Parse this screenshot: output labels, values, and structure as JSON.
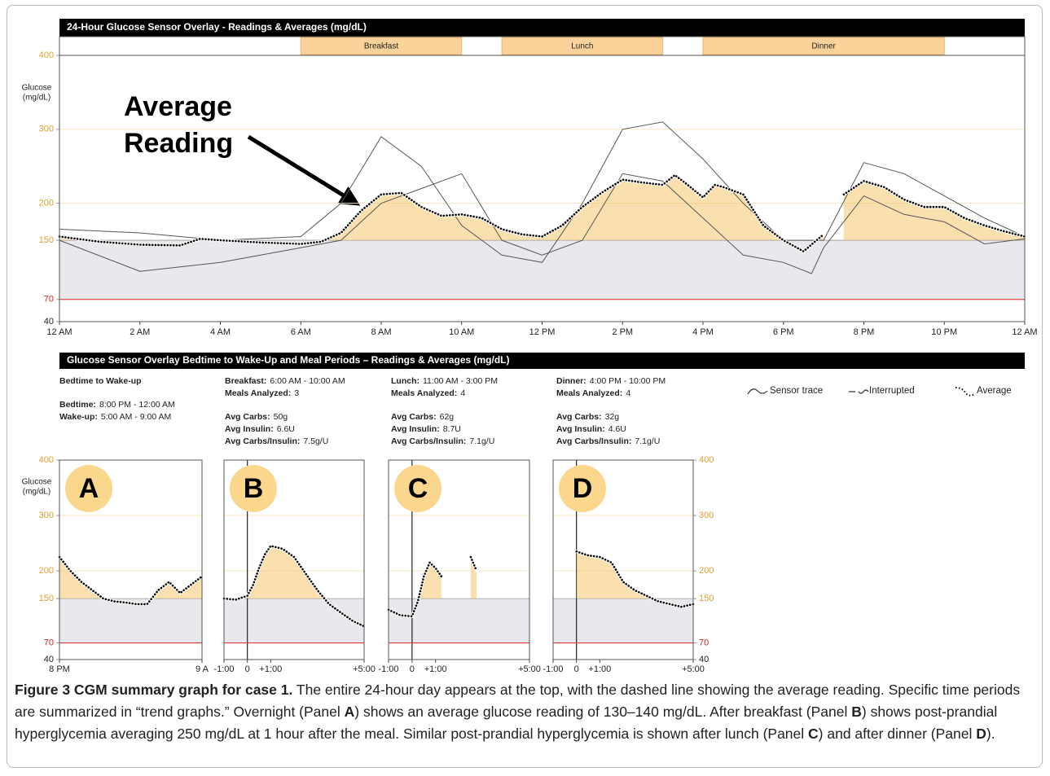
{
  "top": {
    "title": "24-Hour Glucose Sensor Overlay - Readings & Averages (mg/dL)",
    "meals": [
      {
        "label": "Breakfast",
        "start": 6,
        "end": 10
      },
      {
        "label": "Lunch",
        "start": 11,
        "end": 15
      },
      {
        "label": "Dinner",
        "start": 16,
        "end": 22
      }
    ],
    "ylabel": [
      "Glucose",
      "(mg/dL)"
    ],
    "ylim": [
      40,
      400
    ],
    "yticks": [
      40,
      70,
      150,
      200,
      300,
      400
    ],
    "xlim": [
      0,
      24
    ],
    "xticks": [
      {
        "value": 0,
        "label": "12 AM"
      },
      {
        "value": 2,
        "label": "2 AM"
      },
      {
        "value": 4,
        "label": "4 AM"
      },
      {
        "value": 6,
        "label": "6 AM"
      },
      {
        "value": 8,
        "label": "8 AM"
      },
      {
        "value": 10,
        "label": "10 AM"
      },
      {
        "value": 12,
        "label": "12 PM"
      },
      {
        "value": 14,
        "label": "2 PM"
      },
      {
        "value": 16,
        "label": "4 PM"
      },
      {
        "value": 18,
        "label": "6 PM"
      },
      {
        "value": 20,
        "label": "8 PM"
      },
      {
        "value": 22,
        "label": "10 PM"
      },
      {
        "value": 24,
        "label": "12 AM"
      }
    ],
    "target_low": 70,
    "target_high": 150,
    "annotation": [
      "Average",
      "Reading"
    ],
    "traces": [
      {
        "x": [
          0,
          2,
          4,
          6,
          7,
          8,
          9,
          10,
          11,
          12,
          13,
          14,
          15,
          16,
          17,
          18,
          19,
          20,
          21,
          22,
          23,
          24
        ],
        "values": [
          165,
          160,
          150,
          155,
          200,
          290,
          250,
          170,
          130,
          120,
          200,
          300,
          310,
          260,
          200,
          150,
          150,
          255,
          240,
          210,
          180,
          155
        ]
      },
      {
        "x": [
          0,
          2,
          4,
          6,
          7,
          8,
          9,
          10,
          11,
          12,
          13,
          14,
          15,
          16,
          17,
          18,
          18.7,
          19,
          20,
          21,
          22,
          23,
          24
        ],
        "values": [
          150,
          108,
          120,
          140,
          150,
          200,
          220,
          240,
          150,
          130,
          150,
          240,
          230,
          180,
          130,
          120,
          105,
          140,
          210,
          185,
          175,
          145,
          152
        ]
      }
    ],
    "average": {
      "x": [
        0,
        1,
        2,
        3,
        3.5,
        4,
        5,
        6,
        6.5,
        7,
        7.5,
        8,
        8.5,
        9,
        9.5,
        10,
        10.5,
        11,
        11.5,
        12,
        12.5,
        13,
        13.5,
        14,
        14.5,
        15,
        15.3,
        15.5,
        16,
        16.3,
        16.5,
        17,
        17.5,
        18,
        18.5,
        19,
        19.25,
        19.5,
        20,
        20.5,
        21,
        21.5,
        22,
        22.5,
        23,
        23.5,
        24
      ],
      "values": [
        155,
        148,
        144,
        143,
        152,
        150,
        147,
        145,
        148,
        160,
        190,
        212,
        214,
        195,
        183,
        185,
        180,
        165,
        158,
        155,
        170,
        195,
        215,
        232,
        228,
        225,
        238,
        230,
        208,
        225,
        222,
        212,
        170,
        150,
        135,
        158,
        null,
        212,
        230,
        222,
        205,
        195,
        195,
        180,
        170,
        162,
        155
      ]
    }
  },
  "bottom": {
    "title": "Glucose Sensor Overlay Bedtime to Wake-Up and Meal Periods – Readings & Averages (mg/dL)",
    "legend": [
      "Sensor trace",
      "Interrupted",
      "Average"
    ],
    "ylabel": [
      "Glucose",
      "(mg/dL)"
    ],
    "ylim": [
      40,
      400
    ],
    "yticks": [
      40,
      70,
      150,
      200,
      300,
      400
    ],
    "target_low": 70,
    "target_high": 150,
    "panels": [
      {
        "letter": "A",
        "info": [
          [
            {
              "label": "Bedtime to Wake-up"
            }
          ],
          [
            {
              "label": "Bedtime:",
              "value": "8:00 PM - 12:00 AM"
            },
            {
              "label": "Wake-up:",
              "value": "5:00 AM - 9:00 AM"
            }
          ]
        ],
        "xlim": [
          0,
          13
        ],
        "xticks": [
          {
            "value": 0,
            "label": "8 PM"
          },
          {
            "value": 13,
            "label": "9 A"
          }
        ],
        "average": {
          "x": [
            0,
            1,
            2,
            3,
            4,
            5,
            6,
            7,
            8,
            9,
            10,
            11,
            12,
            13
          ],
          "values": [
            225,
            200,
            180,
            165,
            150,
            145,
            143,
            140,
            140,
            165,
            180,
            160,
            175,
            190
          ]
        }
      },
      {
        "letter": "B",
        "info": [
          [
            {
              "label": "Breakfast:",
              "value": "6:00 AM - 10:00 AM"
            },
            {
              "label": "Meals Analyzed:",
              "value": "3"
            }
          ],
          [
            {
              "label": "Avg Carbs:",
              "value": "50g"
            },
            {
              "label": "Avg Insulin:",
              "value": "6.6U"
            },
            {
              "label": "Avg Carbs/Insulin:",
              "value": "7.5g/U"
            }
          ]
        ],
        "xlim": [
          -1,
          5
        ],
        "xticks": [
          {
            "value": -1,
            "label": "-1:00"
          },
          0,
          {
            "value": 1,
            "label": "+1:00"
          },
          {
            "value": 5,
            "label": "+5:00"
          }
        ],
        "average": {
          "x": [
            -1,
            -0.5,
            0,
            0.25,
            0.5,
            0.75,
            1,
            1.5,
            2,
            2.5,
            3,
            3.5,
            4,
            4.5,
            5
          ],
          "values": [
            150,
            148,
            155,
            175,
            205,
            230,
            245,
            240,
            225,
            195,
            165,
            140,
            125,
            110,
            100
          ]
        }
      },
      {
        "letter": "C",
        "info": [
          [
            {
              "label": "Lunch:",
              "value": "11:00 AM - 3:00 PM"
            },
            {
              "label": "Meals Analyzed:",
              "value": "4"
            }
          ],
          [
            {
              "label": "Avg Carbs:",
              "value": "62g"
            },
            {
              "label": "Avg Insulin:",
              "value": "8.7U"
            },
            {
              "label": "Avg Carbs/Insulin:",
              "value": "7.1g/U"
            }
          ]
        ],
        "xlim": [
          -1,
          5
        ],
        "xticks": [
          {
            "value": -1,
            "label": "-1:00"
          },
          0,
          {
            "value": 1,
            "label": "+1:00"
          },
          {
            "value": 5,
            "label": "+5:00"
          }
        ],
        "average": {
          "x": [
            -1,
            -0.5,
            0,
            0.25,
            0.5,
            0.75,
            1,
            1.25,
            2,
            2.5,
            2.75
          ],
          "values": [
            130,
            120,
            118,
            145,
            190,
            215,
            205,
            190,
            null,
            225,
            200
          ]
        }
      },
      {
        "letter": "D",
        "info": [
          [
            {
              "label": "Dinner:",
              "value": "4:00 PM - 10:00 PM"
            },
            {
              "label": "Meals Analyzed:",
              "value": "4"
            }
          ],
          [
            {
              "label": "Avg Carbs:",
              "value": "32g"
            },
            {
              "label": "Avg Insulin:",
              "value": "4.6U"
            },
            {
              "label": "Avg Carbs/Insulin:",
              "value": "7.1g/U"
            }
          ]
        ],
        "xlim": [
          -1,
          5
        ],
        "xticks": [
          {
            "value": -1,
            "label": "-1:00"
          },
          0,
          {
            "value": 1,
            "label": "+1:00"
          },
          {
            "value": 5,
            "label": "+5:00"
          }
        ],
        "average": {
          "x": [
            0,
            0.5,
            1,
            1.5,
            2,
            2.5,
            3,
            3.5,
            4,
            4.5,
            5
          ],
          "values": [
            235,
            228,
            225,
            215,
            180,
            165,
            155,
            145,
            140,
            135,
            140
          ]
        }
      }
    ]
  },
  "caption": {
    "label": "Figure 3 CGM summary graph for case 1.",
    "segments": [
      " The entire 24-hour day appears at the top, with the dashed line showing the average reading. Specific time periods are summarized in “trend graphs.” Overnight (Panel ",
      "A",
      ") shows an average glucose reading of 130–140 mg/dL. After breakfast (Panel ",
      "B",
      ") shows post-prandial hyperglycemia averaging 250 mg/dL at 1 hour after the meal. Similar post-prandial hyperglycemia is shown after lunch (Panel ",
      "C",
      ") and after dinner (Panel ",
      "D",
      ")."
    ]
  }
}
